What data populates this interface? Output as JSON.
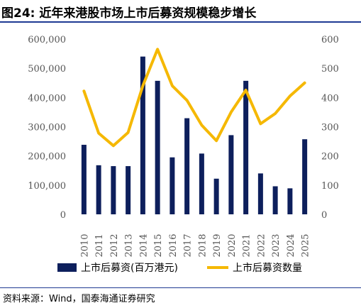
{
  "title": "图24:  近年来港股市场上市后募资规模稳步增长",
  "source": "资料来源：Wind，国泰海通证券研究",
  "colors": {
    "bar": "#0d1f5c",
    "line": "#f5b800",
    "rule": "#1f3a93",
    "tick": "#555555"
  },
  "chart_data": {
    "type": "bar+line",
    "categories": [
      "2010",
      "2011",
      "2012",
      "2013",
      "2014",
      "2015",
      "2016",
      "2017",
      "2018",
      "2019",
      "2020",
      "2021",
      "2022",
      "2023",
      "2024",
      "2025"
    ],
    "series": [
      {
        "name": "上市后募资(百万港元)",
        "type": "bar",
        "axis": "left",
        "values": [
          238000,
          168000,
          165000,
          165000,
          540000,
          457000,
          195000,
          329000,
          208000,
          122000,
          271000,
          457000,
          140000,
          96000,
          89000,
          257000
        ]
      },
      {
        "name": "上市后募资数量",
        "type": "line",
        "axis": "right",
        "values": [
          422,
          278,
          235,
          280,
          440,
          565,
          440,
          390,
          305,
          252,
          350,
          425,
          310,
          345,
          405,
          450
        ]
      }
    ],
    "left_axis": {
      "ylim": [
        0,
        600000
      ],
      "ticks": [
        "0",
        "100,000",
        "200,000",
        "300,000",
        "400,000",
        "500,000",
        "600,000"
      ]
    },
    "right_axis": {
      "ylim": [
        0,
        600
      ],
      "ticks": [
        "0",
        "100",
        "200",
        "300",
        "400",
        "500",
        "600"
      ]
    },
    "grid": false,
    "legend": "bottom"
  }
}
